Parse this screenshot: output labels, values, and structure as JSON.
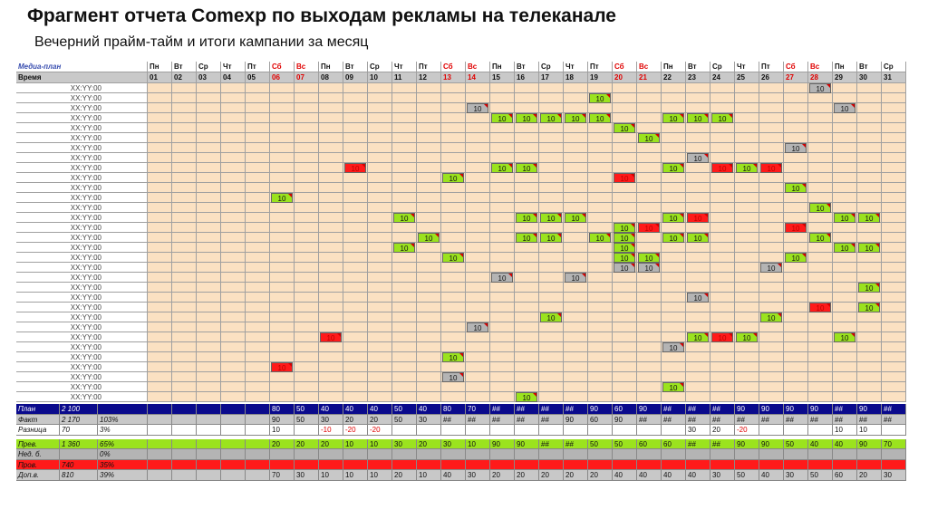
{
  "title": "Фрагмент отчета Comexp по выходам рекламы на телеканале",
  "subtitle": "Вечерний прайм-тайм и итоги кампании за месяц",
  "sheet": {
    "corner_label": "Медиа-план",
    "time_header": "Время",
    "weekdays": [
      "Пн",
      "Вт",
      "Ср",
      "Чт",
      "Пт",
      "Сб",
      "Вс",
      "Пн",
      "Вт",
      "Ср",
      "Чт",
      "Пт",
      "Сб",
      "Вс",
      "Пн",
      "Вт",
      "Ср",
      "Чт",
      "Пт",
      "Сб",
      "Вс",
      "Пн",
      "Вт",
      "Ср",
      "Чт",
      "Пт",
      "Сб",
      "Вс",
      "Пн",
      "Вт",
      "Ср"
    ],
    "days": [
      "01",
      "02",
      "03",
      "04",
      "05",
      "06",
      "07",
      "08",
      "09",
      "10",
      "11",
      "12",
      "13",
      "14",
      "15",
      "16",
      "17",
      "18",
      "19",
      "20",
      "21",
      "22",
      "23",
      "24",
      "25",
      "26",
      "27",
      "28",
      "29",
      "30",
      "31"
    ],
    "weekend_days": [
      6,
      7,
      13,
      14,
      20,
      21,
      27,
      28
    ],
    "time_label": "XX:YY:00",
    "row_count": 32,
    "spot_value": "10",
    "colors": {
      "placed": "#9be31e",
      "missed": "#ff1a1a",
      "other": "#b4b4b4",
      "empty": "#fbe1c2",
      "plan_row": "#0a0a8c",
      "fact_row": "#c8c8c8",
      "prev_row": "#9be31e",
      "nedovyhod_row": "#b4b4b4",
      "proval_row": "#ff1a1a",
      "dop_row": "#c8c8c8"
    },
    "spots": [
      {
        "row": 0,
        "day": 28,
        "status": "other"
      },
      {
        "row": 1,
        "day": 19,
        "status": "placed"
      },
      {
        "row": 2,
        "day": 14,
        "status": "other"
      },
      {
        "row": 2,
        "day": 29,
        "status": "other"
      },
      {
        "row": 3,
        "day": 15,
        "status": "placed"
      },
      {
        "row": 3,
        "day": 16,
        "status": "placed"
      },
      {
        "row": 3,
        "day": 17,
        "status": "placed"
      },
      {
        "row": 3,
        "day": 18,
        "status": "placed"
      },
      {
        "row": 3,
        "day": 19,
        "status": "placed"
      },
      {
        "row": 3,
        "day": 22,
        "status": "placed"
      },
      {
        "row": 3,
        "day": 23,
        "status": "placed"
      },
      {
        "row": 3,
        "day": 24,
        "status": "placed"
      },
      {
        "row": 4,
        "day": 20,
        "status": "placed"
      },
      {
        "row": 5,
        "day": 21,
        "status": "placed"
      },
      {
        "row": 6,
        "day": 27,
        "status": "other"
      },
      {
        "row": 7,
        "day": 23,
        "status": "other"
      },
      {
        "row": 8,
        "day": 9,
        "status": "missed"
      },
      {
        "row": 8,
        "day": 15,
        "status": "placed"
      },
      {
        "row": 8,
        "day": 16,
        "status": "placed"
      },
      {
        "row": 8,
        "day": 22,
        "status": "placed"
      },
      {
        "row": 8,
        "day": 24,
        "status": "missed"
      },
      {
        "row": 8,
        "day": 25,
        "status": "placed"
      },
      {
        "row": 8,
        "day": 26,
        "status": "missed"
      },
      {
        "row": 9,
        "day": 13,
        "status": "placed"
      },
      {
        "row": 9,
        "day": 20,
        "status": "missed"
      },
      {
        "row": 10,
        "day": 27,
        "status": "placed"
      },
      {
        "row": 11,
        "day": 6,
        "status": "placed"
      },
      {
        "row": 12,
        "day": 28,
        "status": "placed"
      },
      {
        "row": 13,
        "day": 11,
        "status": "placed"
      },
      {
        "row": 13,
        "day": 16,
        "status": "placed"
      },
      {
        "row": 13,
        "day": 17,
        "status": "placed"
      },
      {
        "row": 13,
        "day": 18,
        "status": "placed"
      },
      {
        "row": 13,
        "day": 22,
        "status": "placed"
      },
      {
        "row": 13,
        "day": 23,
        "status": "missed"
      },
      {
        "row": 13,
        "day": 29,
        "status": "placed"
      },
      {
        "row": 13,
        "day": 30,
        "status": "placed"
      },
      {
        "row": 14,
        "day": 20,
        "status": "placed"
      },
      {
        "row": 14,
        "day": 21,
        "status": "missed"
      },
      {
        "row": 14,
        "day": 27,
        "status": "missed"
      },
      {
        "row": 15,
        "day": 12,
        "status": "placed"
      },
      {
        "row": 15,
        "day": 16,
        "status": "placed"
      },
      {
        "row": 15,
        "day": 17,
        "status": "placed"
      },
      {
        "row": 15,
        "day": 19,
        "status": "placed"
      },
      {
        "row": 15,
        "day": 20,
        "status": "placed"
      },
      {
        "row": 15,
        "day": 22,
        "status": "placed"
      },
      {
        "row": 15,
        "day": 23,
        "status": "placed"
      },
      {
        "row": 15,
        "day": 28,
        "status": "placed"
      },
      {
        "row": 16,
        "day": 11,
        "status": "placed"
      },
      {
        "row": 16,
        "day": 20,
        "status": "placed"
      },
      {
        "row": 16,
        "day": 29,
        "status": "placed"
      },
      {
        "row": 16,
        "day": 30,
        "status": "placed"
      },
      {
        "row": 17,
        "day": 13,
        "status": "placed"
      },
      {
        "row": 17,
        "day": 20,
        "status": "placed"
      },
      {
        "row": 17,
        "day": 21,
        "status": "placed"
      },
      {
        "row": 17,
        "day": 27,
        "status": "placed"
      },
      {
        "row": 18,
        "day": 20,
        "status": "other"
      },
      {
        "row": 18,
        "day": 21,
        "status": "other"
      },
      {
        "row": 18,
        "day": 26,
        "status": "other"
      },
      {
        "row": 19,
        "day": 15,
        "status": "other"
      },
      {
        "row": 19,
        "day": 18,
        "status": "other"
      },
      {
        "row": 20,
        "day": 30,
        "status": "placed"
      },
      {
        "row": 21,
        "day": 23,
        "status": "other"
      },
      {
        "row": 22,
        "day": 28,
        "status": "missed"
      },
      {
        "row": 22,
        "day": 30,
        "status": "placed"
      },
      {
        "row": 23,
        "day": 17,
        "status": "placed"
      },
      {
        "row": 23,
        "day": 26,
        "status": "placed"
      },
      {
        "row": 24,
        "day": 14,
        "status": "other"
      },
      {
        "row": 25,
        "day": 8,
        "status": "missed"
      },
      {
        "row": 25,
        "day": 23,
        "status": "placed"
      },
      {
        "row": 25,
        "day": 24,
        "status": "missed"
      },
      {
        "row": 25,
        "day": 25,
        "status": "placed"
      },
      {
        "row": 25,
        "day": 29,
        "status": "placed"
      },
      {
        "row": 26,
        "day": 22,
        "status": "other"
      },
      {
        "row": 27,
        "day": 13,
        "status": "placed"
      },
      {
        "row": 28,
        "day": 6,
        "status": "missed"
      },
      {
        "row": 29,
        "day": 13,
        "status": "other"
      },
      {
        "row": 30,
        "day": 22,
        "status": "placed"
      },
      {
        "row": 31,
        "day": 16,
        "status": "placed"
      }
    ],
    "summary_rows": [
      {
        "label": "План",
        "total": "2 100",
        "pct": "",
        "pct2": "",
        "values": [
          "",
          "",
          "",
          "",
          "",
          "80",
          "50",
          "40",
          "40",
          "40",
          "50",
          "40",
          "80",
          "70",
          "##",
          "##",
          "##",
          "##",
          "90",
          "60",
          "90",
          "##",
          "##",
          "##",
          "90",
          "90",
          "90",
          "90",
          "##",
          "90",
          "##"
        ],
        "style": "plan"
      },
      {
        "label": "Факт",
        "total": "2 170",
        "pct": "103%",
        "pct2": "",
        "values": [
          "",
          "",
          "",
          "",
          "",
          "90",
          "50",
          "30",
          "20",
          "20",
          "50",
          "30",
          "##",
          "##",
          "##",
          "##",
          "##",
          "90",
          "60",
          "90",
          "##",
          "##",
          "##",
          "##",
          "##",
          "##",
          "##",
          "##",
          "##",
          "##",
          "##"
        ],
        "style": "fact"
      },
      {
        "label": "Разница",
        "total": "70",
        "pct": "3%",
        "pct2": "",
        "values": [
          "",
          "",
          "",
          "",
          "",
          "10",
          "",
          "-10",
          "-20",
          "-20",
          "",
          "",
          "",
          "",
          "",
          "",
          "",
          "",
          "",
          "",
          "",
          "",
          "30",
          "20",
          "-20",
          "",
          "",
          "",
          "10",
          "10",
          ""
        ],
        "style": "diff"
      },
      {
        "label": "Прев.",
        "total": "1 360",
        "pct": "65%",
        "pct2": "",
        "values": [
          "",
          "",
          "",
          "",
          "",
          "20",
          "20",
          "20",
          "10",
          "10",
          "30",
          "20",
          "30",
          "10",
          "90",
          "90",
          "##",
          "##",
          "50",
          "50",
          "60",
          "60",
          "##",
          "##",
          "90",
          "90",
          "50",
          "40",
          "40",
          "90",
          "70"
        ],
        "style": "prev"
      },
      {
        "label": "Нед. б.",
        "total": "",
        "pct": "0%",
        "pct2": "",
        "values": [],
        "style": "ned"
      },
      {
        "label": "Пров.",
        "total": "740",
        "pct": "35%",
        "pct2": "",
        "values": [
          "",
          "",
          "",
          "",
          "",
          "",
          "",
          "",
          "",
          "",
          "",
          "",
          "",
          "",
          "",
          "",
          "",
          "",
          "",
          "",
          "",
          "",
          "",
          "",
          "",
          "",
          "",
          "",
          "",
          "",
          ""
        ],
        "style": "prov"
      },
      {
        "label": "Доп.в.",
        "total": "810",
        "pct": "39%",
        "pct2": "",
        "values": [
          "",
          "",
          "",
          "",
          "",
          "70",
          "30",
          "10",
          "10",
          "10",
          "20",
          "10",
          "40",
          "30",
          "20",
          "20",
          "20",
          "20",
          "20",
          "40",
          "40",
          "40",
          "40",
          "30",
          "50",
          "40",
          "30",
          "50",
          "60",
          "20",
          "30"
        ],
        "style": "dop"
      }
    ]
  }
}
